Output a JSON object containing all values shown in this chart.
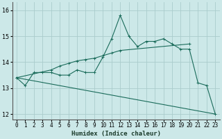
{
  "xlabel": "Humidex (Indice chaleur)",
  "xlim": [
    -0.5,
    23.5
  ],
  "ylim": [
    11.8,
    16.3
  ],
  "xticks": [
    0,
    1,
    2,
    3,
    4,
    5,
    6,
    7,
    8,
    9,
    10,
    11,
    12,
    13,
    14,
    15,
    16,
    17,
    18,
    19,
    20,
    21,
    22,
    23
  ],
  "yticks": [
    12,
    13,
    14,
    15,
    16
  ],
  "background_color": "#cce8e8",
  "grid_color_major": "#aacccc",
  "line_color": "#1a6b5a",
  "line1_x": [
    0,
    1,
    2,
    3,
    4,
    5,
    6,
    7,
    8,
    9,
    10,
    11,
    12,
    13,
    14,
    15,
    16,
    17,
    18,
    19,
    20,
    21,
    22,
    23
  ],
  "line1_y": [
    13.4,
    13.1,
    13.6,
    13.6,
    13.6,
    13.5,
    13.5,
    13.7,
    13.6,
    13.6,
    14.2,
    14.9,
    15.8,
    15.0,
    14.6,
    14.8,
    14.8,
    14.9,
    14.7,
    14.5,
    14.5,
    13.2,
    13.1,
    12.0
  ],
  "line2_x": [
    0,
    4,
    5,
    6,
    7,
    8,
    9,
    10,
    11,
    12,
    20
  ],
  "line2_y": [
    13.4,
    13.7,
    13.85,
    13.95,
    14.05,
    14.1,
    14.15,
    14.25,
    14.35,
    14.45,
    14.7
  ],
  "line3_x": [
    0,
    23
  ],
  "line3_y": [
    13.4,
    12.0
  ],
  "xlabel_fontsize": 6.5,
  "tick_fontsize": 5.5
}
